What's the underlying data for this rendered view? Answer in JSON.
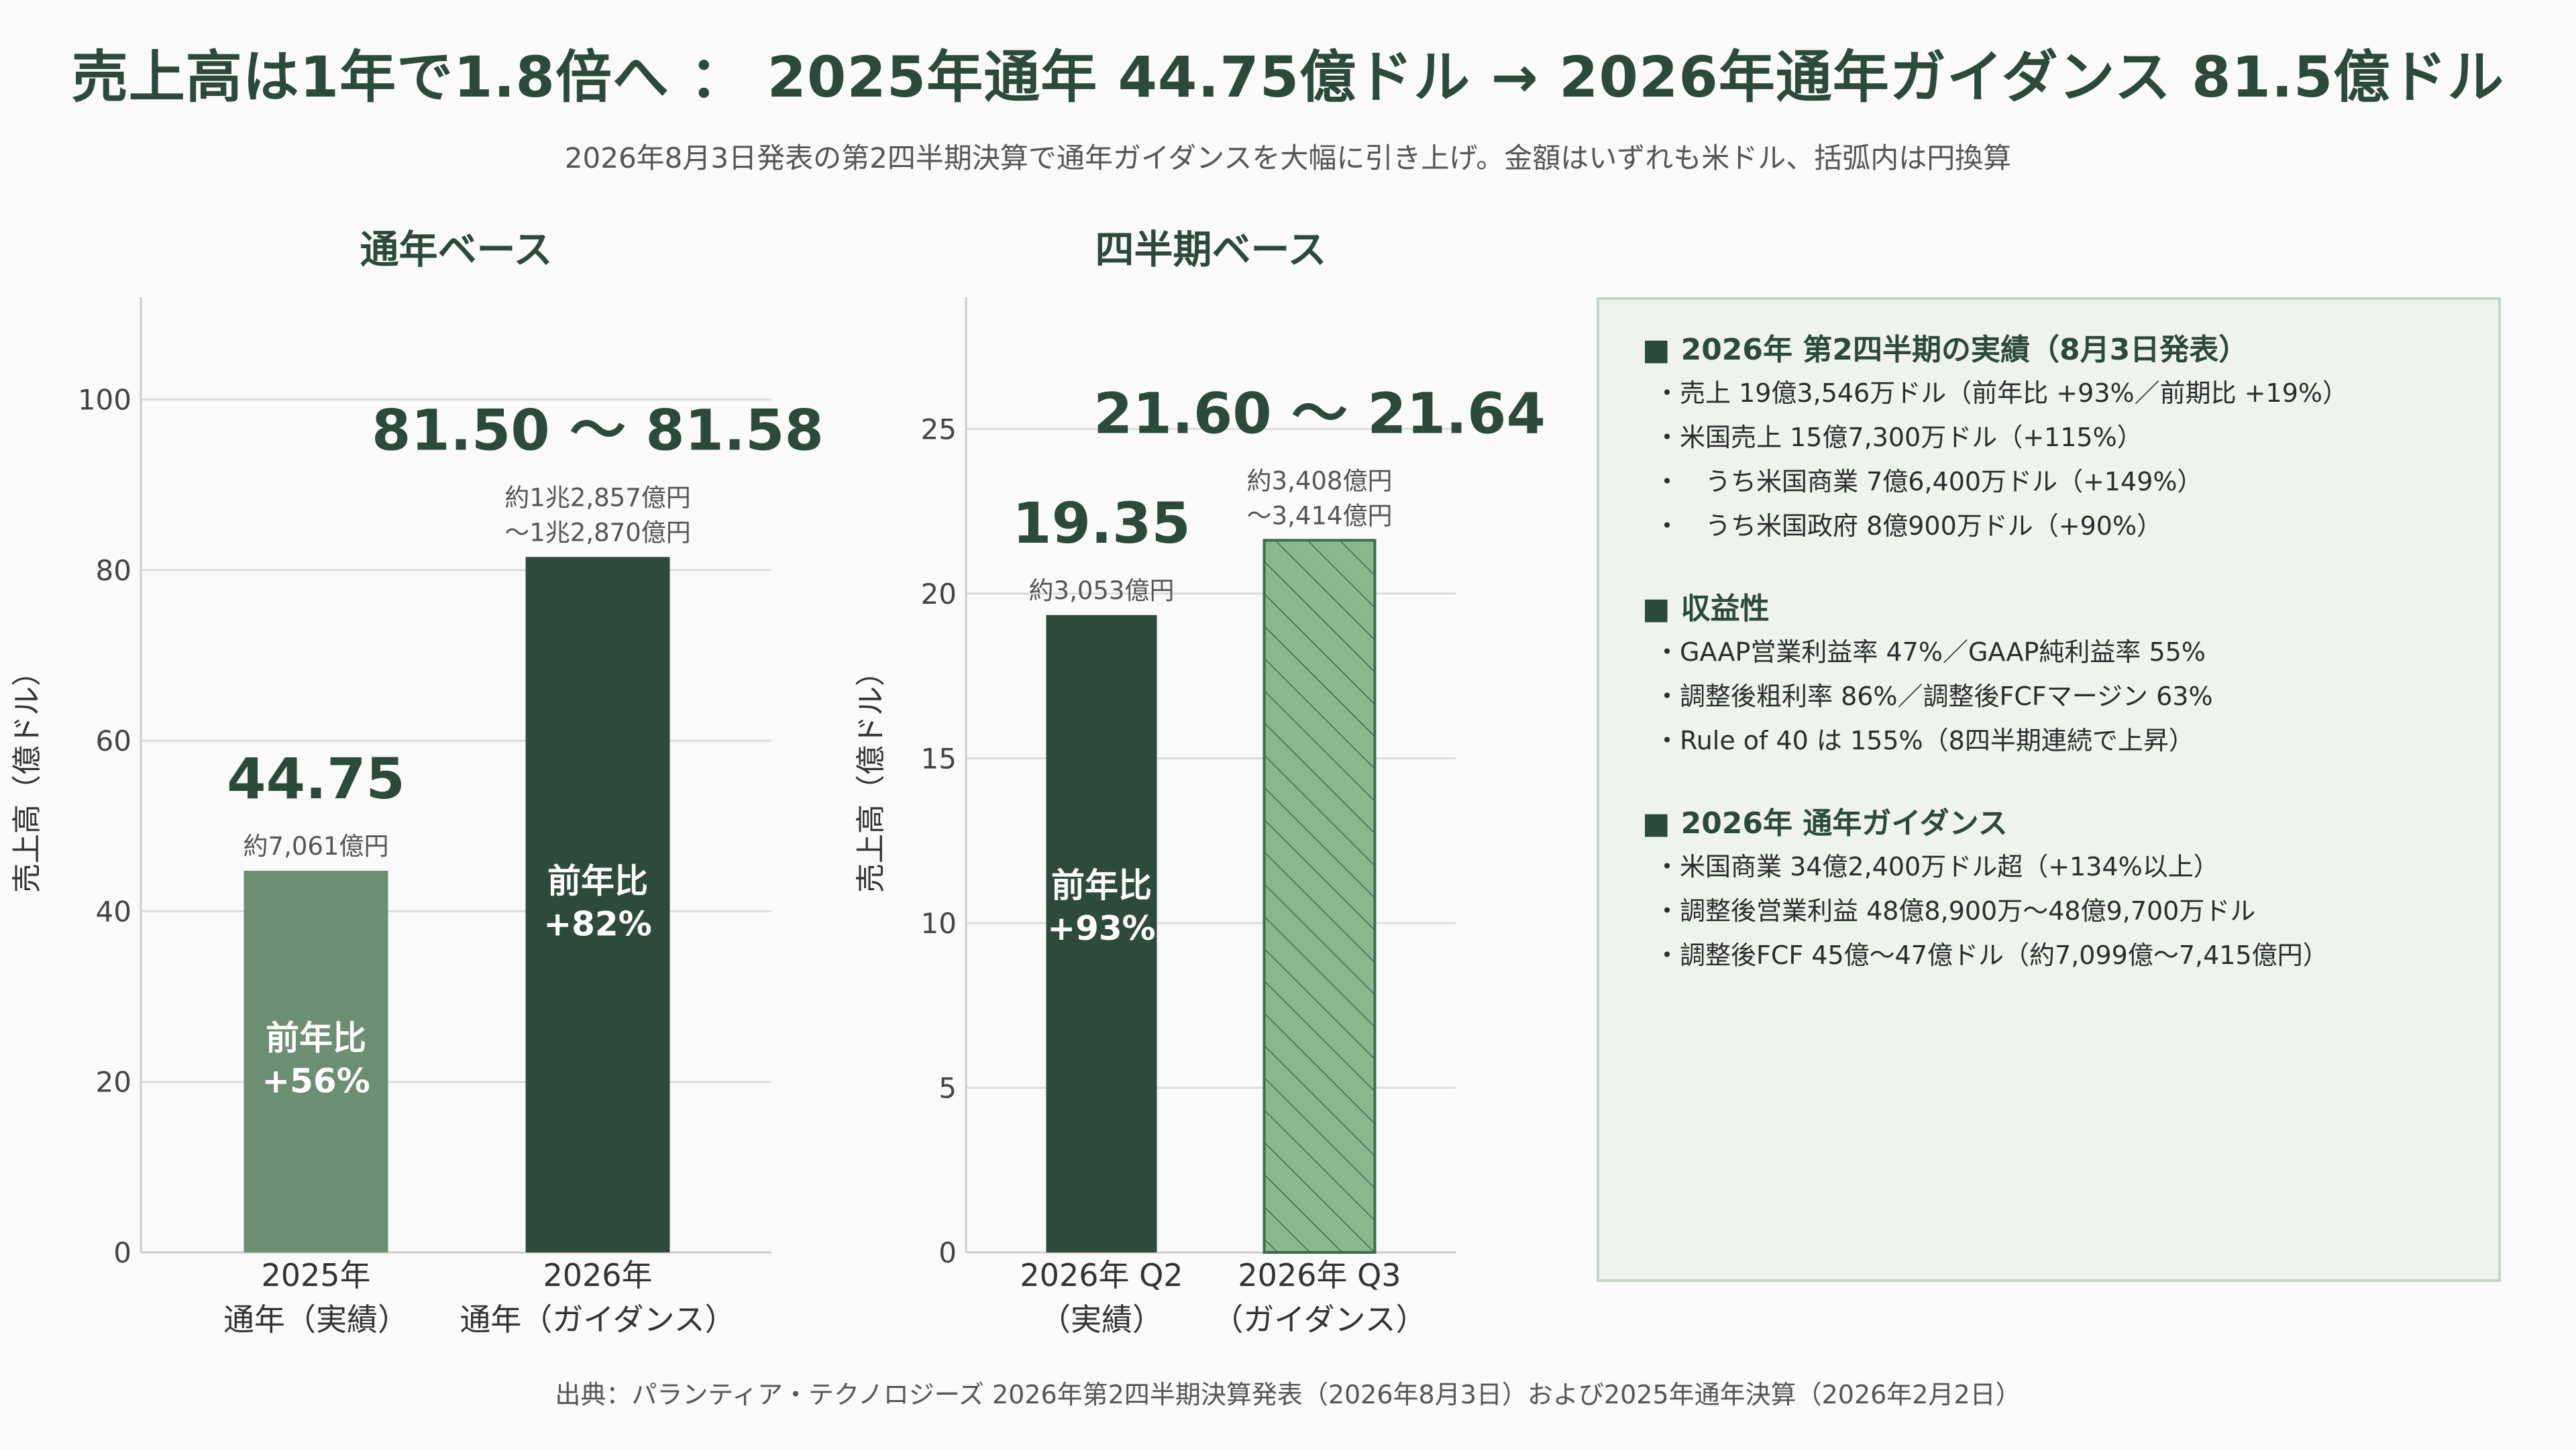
{
  "header": {
    "title": "売上高は1年で1.8倍へ ： 2025年通年 44.75億ドル → 2026年通年ガイダンス 81.5億ドル",
    "subtitle": "2026年8月3日発表の第2四半期決算で通年ガイダンスを大幅に引き上げ。金額はいずれも米ドル、括弧内は円換算"
  },
  "footer": {
    "source": "出典：パランティア・テクノロジーズ 2026年第2四半期決算発表（2026年8月3日）および2025年通年決算（2026年2月2日）"
  },
  "colors": {
    "dark_green": "#2e4a3d",
    "mid_green": "#6b8f70",
    "light_green": "#8ab88e",
    "grid": "#dddddd",
    "text": "#2c4a3c"
  },
  "chart_data": [
    {
      "type": "bar",
      "title": "通年ベース",
      "ylabel": "売上高（億ドル）",
      "ylim": [
        0,
        112
      ],
      "yticks": [
        0,
        20,
        40,
        60,
        80,
        100
      ],
      "categories": [
        [
          "2025年",
          "通年（実績）"
        ],
        [
          "2026年",
          "通年（ガイダンス）"
        ]
      ],
      "values": [
        44.75,
        81.54
      ],
      "value_labels": [
        "44.75",
        "81.50 ～ 81.58"
      ],
      "yen_labels": [
        [
          "約7,061億円"
        ],
        [
          "約1兆2,857億円",
          "～1兆2,870億円"
        ]
      ],
      "inner_labels": [
        [
          "前年比",
          "+56%"
        ],
        [
          "前年比",
          "+82%"
        ]
      ],
      "bar_colors": [
        "#6b8f70",
        "#2e4a3d"
      ],
      "hatched": [
        false,
        false
      ]
    },
    {
      "type": "bar",
      "title": "四半期ベース",
      "ylabel": "売上高（億ドル）",
      "ylim": [
        0,
        29
      ],
      "yticks": [
        0,
        5,
        10,
        15,
        20,
        25
      ],
      "categories": [
        [
          "2026年 Q2",
          "（実績）"
        ],
        [
          "2026年 Q3",
          "（ガイダンス）"
        ]
      ],
      "values": [
        19.35,
        21.62
      ],
      "value_labels": [
        "19.35",
        "21.60 ～ 21.64"
      ],
      "yen_labels": [
        [
          "約3,053億円"
        ],
        [
          "約3,408億円",
          "～3,414億円"
        ]
      ],
      "inner_labels": [
        [
          "前年比",
          "+93%"
        ],
        []
      ],
      "bar_colors": [
        "#2e4a3d",
        "#8ab88e"
      ],
      "hatched": [
        false,
        true
      ]
    }
  ],
  "panel": {
    "sections": [
      {
        "heading": "2026年 第2四半期の実績（8月3日発表）",
        "items": [
          "・売上 19億3,546万ドル（前年比 +93%／前期比 +19%）",
          "・米国売上 15億7,300万ドル（+115%）",
          "・　うち米国商業 7億6,400万ドル（+149%）",
          "・　うち米国政府 8億900万ドル（+90%）"
        ]
      },
      {
        "heading": "収益性",
        "items": [
          "・GAAP営業利益率 47%／GAAP純利益率 55%",
          "・調整後粗利率 86%／調整後FCFマージン 63%",
          "・Rule of 40 は 155%（8四半期連続で上昇）"
        ]
      },
      {
        "heading": "2026年 通年ガイダンス",
        "items": [
          "・米国商業 34億2,400万ドル超（+134%以上）",
          "・調整後営業利益 48億8,900万～48億9,700万ドル",
          "・調整後FCF 45億～47億ドル（約7,099億～7,415億円）"
        ]
      }
    ]
  }
}
